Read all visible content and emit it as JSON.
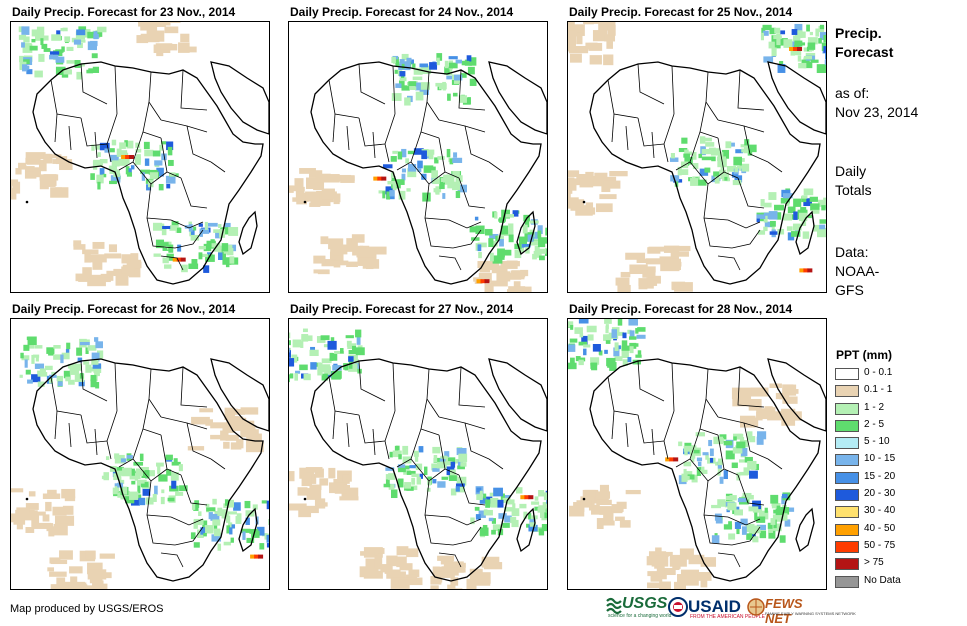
{
  "panels": [
    {
      "title": "Daily Precip. Forecast for 23 Nov., 2014"
    },
    {
      "title": "Daily Precip. Forecast for 24 Nov., 2014"
    },
    {
      "title": "Daily Precip. Forecast for 25 Nov., 2014"
    },
    {
      "title": "Daily Precip. Forecast for 26 Nov., 2014"
    },
    {
      "title": "Daily Precip. Forecast for 27 Nov., 2014"
    },
    {
      "title": "Daily Precip. Forecast for 28 Nov., 2014"
    }
  ],
  "sidebar": {
    "title_line1": "Precip.",
    "title_line2": "Forecast",
    "asof_label": "as of:",
    "asof_date": "Nov 23, 2014",
    "totals_line1": "Daily",
    "totals_line2": "Totals",
    "data_line1": "Data:",
    "data_line2": "NOAA-",
    "data_line3": "GFS"
  },
  "legend": {
    "title": "PPT (mm)",
    "items": [
      {
        "label": "0 - 0.1",
        "color": "#ffffff"
      },
      {
        "label": "0.1 - 1",
        "color": "#e9d3b3"
      },
      {
        "label": "1 - 2",
        "color": "#b4f0b4"
      },
      {
        "label": "2 - 5",
        "color": "#5fdc6e"
      },
      {
        "label": "5 - 10",
        "color": "#b4ecf5"
      },
      {
        "label": "10 - 15",
        "color": "#78b4eb"
      },
      {
        "label": "15 - 20",
        "color": "#4690e6"
      },
      {
        "label": "20 - 30",
        "color": "#1e5adc"
      },
      {
        "label": "30 - 40",
        "color": "#ffe16e"
      },
      {
        "label": "40 - 50",
        "color": "#ffa000"
      },
      {
        "label": "50 - 75",
        "color": "#ff3c00"
      },
      {
        "label": "> 75",
        "color": "#b41414"
      },
      {
        "label": "No Data",
        "color": "#969696"
      }
    ]
  },
  "footer": {
    "credit": "Map produced by USGS/EROS",
    "logo_usgs": "USGS",
    "logo_usgs_tagline": "science for a changing world",
    "logo_usaid": "USAID",
    "logo_usaid_tagline": "FROM THE AMERICAN PEOPLE",
    "logo_fews": "FEWS NET",
    "logo_fews_tagline": "FAMINE EARLY WARNING SYSTEMS NETWORK"
  }
}
